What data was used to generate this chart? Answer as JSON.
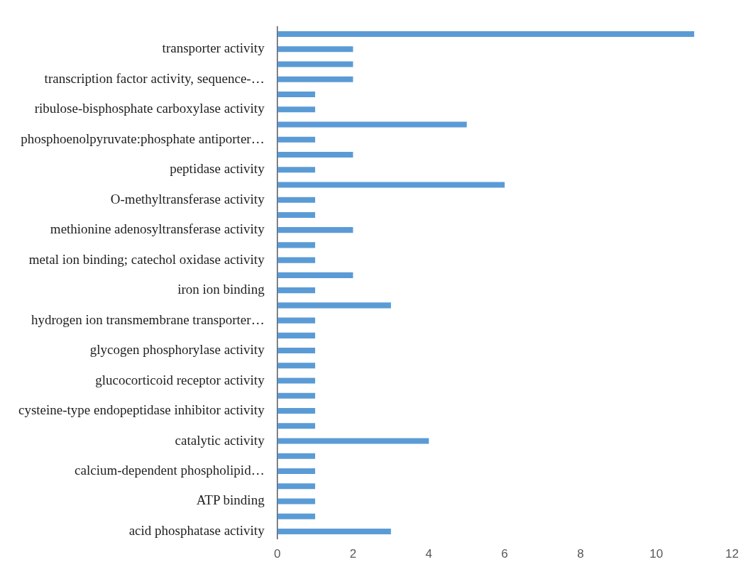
{
  "chart_data": {
    "type": "bar",
    "orientation": "horizontal",
    "categories": [
      null,
      "transporter activity",
      null,
      "transcription factor activity, sequence-…",
      null,
      "ribulose-bisphosphate carboxylase activity",
      null,
      "phosphoenolpyruvate:phosphate antiporter…",
      null,
      "peptidase activity",
      null,
      "O-methyltransferase activity",
      null,
      "methionine adenosyltransferase activity",
      null,
      "metal ion binding; catechol oxidase activity",
      null,
      "iron ion binding",
      null,
      "hydrogen ion transmembrane transporter…",
      null,
      "glycogen phosphorylase activity",
      null,
      "glucocorticoid receptor activity",
      null,
      "cysteine-type endopeptidase inhibitor activity",
      null,
      "catalytic activity",
      null,
      "calcium-dependent phospholipid…",
      null,
      "ATP binding",
      null,
      "acid phosphatase activity"
    ],
    "values": [
      11,
      2,
      2,
      2,
      1,
      1,
      5,
      1,
      2,
      1,
      6,
      1,
      1,
      2,
      1,
      1,
      2,
      1,
      3,
      1,
      1,
      1,
      1,
      1,
      1,
      1,
      1,
      4,
      1,
      1,
      1,
      1,
      1,
      3
    ],
    "color": "#5b9bd5",
    "xlim": [
      0,
      12
    ],
    "xticks": [
      0,
      2,
      4,
      6,
      8,
      10,
      12
    ]
  }
}
